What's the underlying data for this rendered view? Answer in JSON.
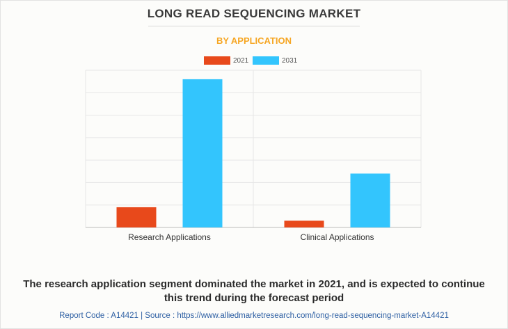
{
  "header": {
    "title": "LONG READ SEQUENCING MARKET",
    "subtitle": "BY APPLICATION"
  },
  "colors": {
    "series_2021": "#e8491b",
    "series_2031": "#33c5fd",
    "grid": "#e6e6e6",
    "axis": "#bbbbbb"
  },
  "chart_data": {
    "type": "bar",
    "categories": [
      "Research Applications",
      "Clinical Applications"
    ],
    "series": [
      {
        "name": "2021",
        "values": [
          0.9,
          0.3
        ]
      },
      {
        "name": "2031",
        "values": [
          6.6,
          2.4
        ]
      }
    ],
    "ylim": [
      0,
      7
    ],
    "grid": true,
    "legend": "top-center",
    "xlabel": "",
    "ylabel": ""
  },
  "caption": {
    "line1": "The research application segment dominated the market in 2021, and is expected to continue",
    "line2": "this trend during the forecast period"
  },
  "footer": {
    "text": "Report Code : A14421  |  Source : https://www.alliedmarketresearch.com/long-read-sequencing-market-A14421"
  }
}
